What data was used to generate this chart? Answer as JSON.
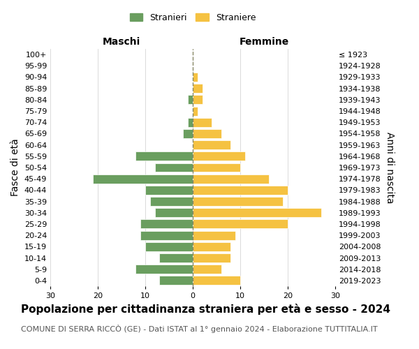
{
  "age_groups_bottom_to_top": [
    "0-4",
    "5-9",
    "10-14",
    "15-19",
    "20-24",
    "25-29",
    "30-34",
    "35-39",
    "40-44",
    "45-49",
    "50-54",
    "55-59",
    "60-64",
    "65-69",
    "70-74",
    "75-79",
    "80-84",
    "85-89",
    "90-94",
    "95-99",
    "100+"
  ],
  "birth_years_bottom_to_top": [
    "2019-2023",
    "2014-2018",
    "2009-2013",
    "2004-2008",
    "1999-2003",
    "1994-1998",
    "1989-1993",
    "1984-1988",
    "1979-1983",
    "1974-1978",
    "1969-1973",
    "1964-1968",
    "1959-1963",
    "1954-1958",
    "1949-1953",
    "1944-1948",
    "1939-1943",
    "1934-1938",
    "1929-1933",
    "1924-1928",
    "≤ 1923"
  ],
  "maschi_bottom_to_top": [
    7,
    12,
    7,
    10,
    11,
    11,
    8,
    9,
    10,
    21,
    8,
    12,
    0,
    2,
    1,
    0,
    1,
    0,
    0,
    0,
    0
  ],
  "femmine_bottom_to_top": [
    10,
    6,
    8,
    8,
    9,
    20,
    27,
    19,
    20,
    16,
    10,
    11,
    8,
    6,
    4,
    1,
    2,
    2,
    1,
    0,
    0
  ],
  "maschi_color": "#6a9e5f",
  "femmine_color": "#f5c242",
  "bar_edge_color": "white",
  "background_color": "#ffffff",
  "grid_color": "#cccccc",
  "center_line_color": "#888866",
  "title": "Popolazione per cittadinanza straniera per età e sesso - 2024",
  "subtitle": "COMUNE DI SERRA RICCÒ (GE) - Dati ISTAT al 1° gennaio 2024 - Elaborazione TUTTITALIA.IT",
  "xlabel_maschi": "Maschi",
  "xlabel_femmine": "Femmine",
  "ylabel": "Fasce di età",
  "ylabel_right": "Anni di nascita",
  "legend_stranieri": "Stranieri",
  "legend_straniere": "Straniere",
  "xlim": 30,
  "title_fontsize": 11,
  "subtitle_fontsize": 8,
  "tick_fontsize": 8,
  "label_fontsize": 10
}
